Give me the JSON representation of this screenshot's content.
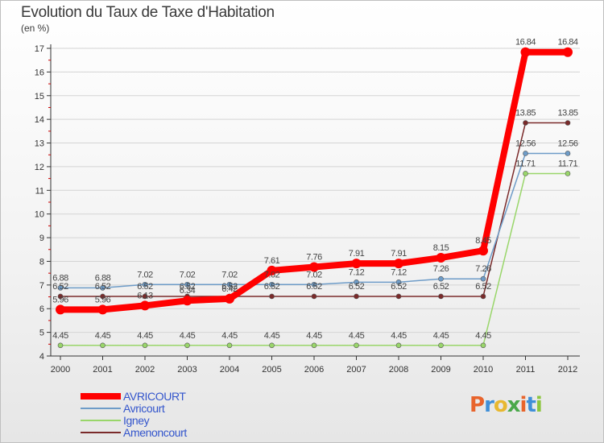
{
  "title": "Evolution du Taux de Taxe d'Habitation",
  "subtitle": "(en %)",
  "logo": {
    "text": "Proxiti",
    "letters": [
      {
        "ch": "P",
        "color": "#e8642c"
      },
      {
        "ch": "r",
        "color": "#3f8fd8"
      },
      {
        "ch": "o",
        "color": "#e8b830"
      },
      {
        "ch": "x",
        "color": "#4aa84a"
      },
      {
        "ch": "i",
        "color": "#e8642c"
      },
      {
        "ch": "t",
        "color": "#3f8fd8"
      },
      {
        "ch": "i",
        "color": "#8cc63f"
      }
    ]
  },
  "chart_data": {
    "type": "line",
    "title": "Evolution du Taux de Taxe d'Habitation",
    "subtitle": "(en %)",
    "xlabel": "",
    "ylabel": "",
    "x": [
      "2000",
      "2001",
      "2002",
      "2003",
      "2004",
      "2005",
      "2006",
      "2007",
      "2008",
      "2009",
      "2010",
      "2011",
      "2012"
    ],
    "ylim": [
      4,
      17
    ],
    "yticks": [
      4,
      5,
      6,
      7,
      8,
      9,
      10,
      11,
      12,
      13,
      14,
      15,
      16,
      17
    ],
    "grid": "horizontal",
    "legend_position": "bottom-left",
    "series": [
      {
        "name": "AVRICOURT",
        "color": "#ff0000",
        "line_width": 8,
        "values": [
          5.96,
          5.96,
          6.13,
          6.34,
          6.42,
          7.61,
          7.76,
          7.91,
          7.91,
          8.15,
          8.45,
          16.84,
          16.84
        ],
        "labels": [
          "5.96",
          "5.96",
          "6.13",
          "6.34",
          "6.42",
          "7.61",
          "7.76",
          "7.91",
          "7.91",
          "8.15",
          "8.45",
          "16.84",
          "16.84"
        ]
      },
      {
        "name": "Avricourt",
        "color": "#6e9cc8",
        "line_width": 1.5,
        "values": [
          6.88,
          6.88,
          7.02,
          7.02,
          7.02,
          7.02,
          7.02,
          7.12,
          7.12,
          7.26,
          7.26,
          12.56,
          12.56
        ],
        "labels": [
          "6.88",
          "6.88",
          "7.02",
          "7.02",
          "7.02",
          "7.02",
          "7.02",
          "7.12",
          "7.12",
          "7.26",
          "7.26",
          "12.56",
          "12.56"
        ]
      },
      {
        "name": "Igney",
        "color": "#99d66a",
        "line_width": 1.5,
        "values": [
          4.45,
          4.45,
          4.45,
          4.45,
          4.45,
          4.45,
          4.45,
          4.45,
          4.45,
          4.45,
          4.45,
          11.71,
          11.71
        ],
        "labels": [
          "4.45",
          "4.45",
          "4.45",
          "4.45",
          "4.45",
          "4.45",
          "4.45",
          "4.45",
          "4.45",
          "4.45",
          "4.45",
          "11.71",
          "11.71"
        ]
      },
      {
        "name": "Amenoncourt",
        "color": "#7a2a2a",
        "line_width": 1.5,
        "values": [
          6.52,
          6.52,
          6.52,
          6.52,
          6.52,
          6.52,
          6.52,
          6.52,
          6.52,
          6.52,
          6.52,
          13.85,
          13.85
        ],
        "labels": [
          "6.52",
          "6.52",
          "6.52",
          "6.52",
          "6.52",
          "6.52",
          "6.52",
          "6.52",
          "6.52",
          "6.52",
          "6.52",
          "13.85",
          "13.85"
        ]
      }
    ]
  }
}
